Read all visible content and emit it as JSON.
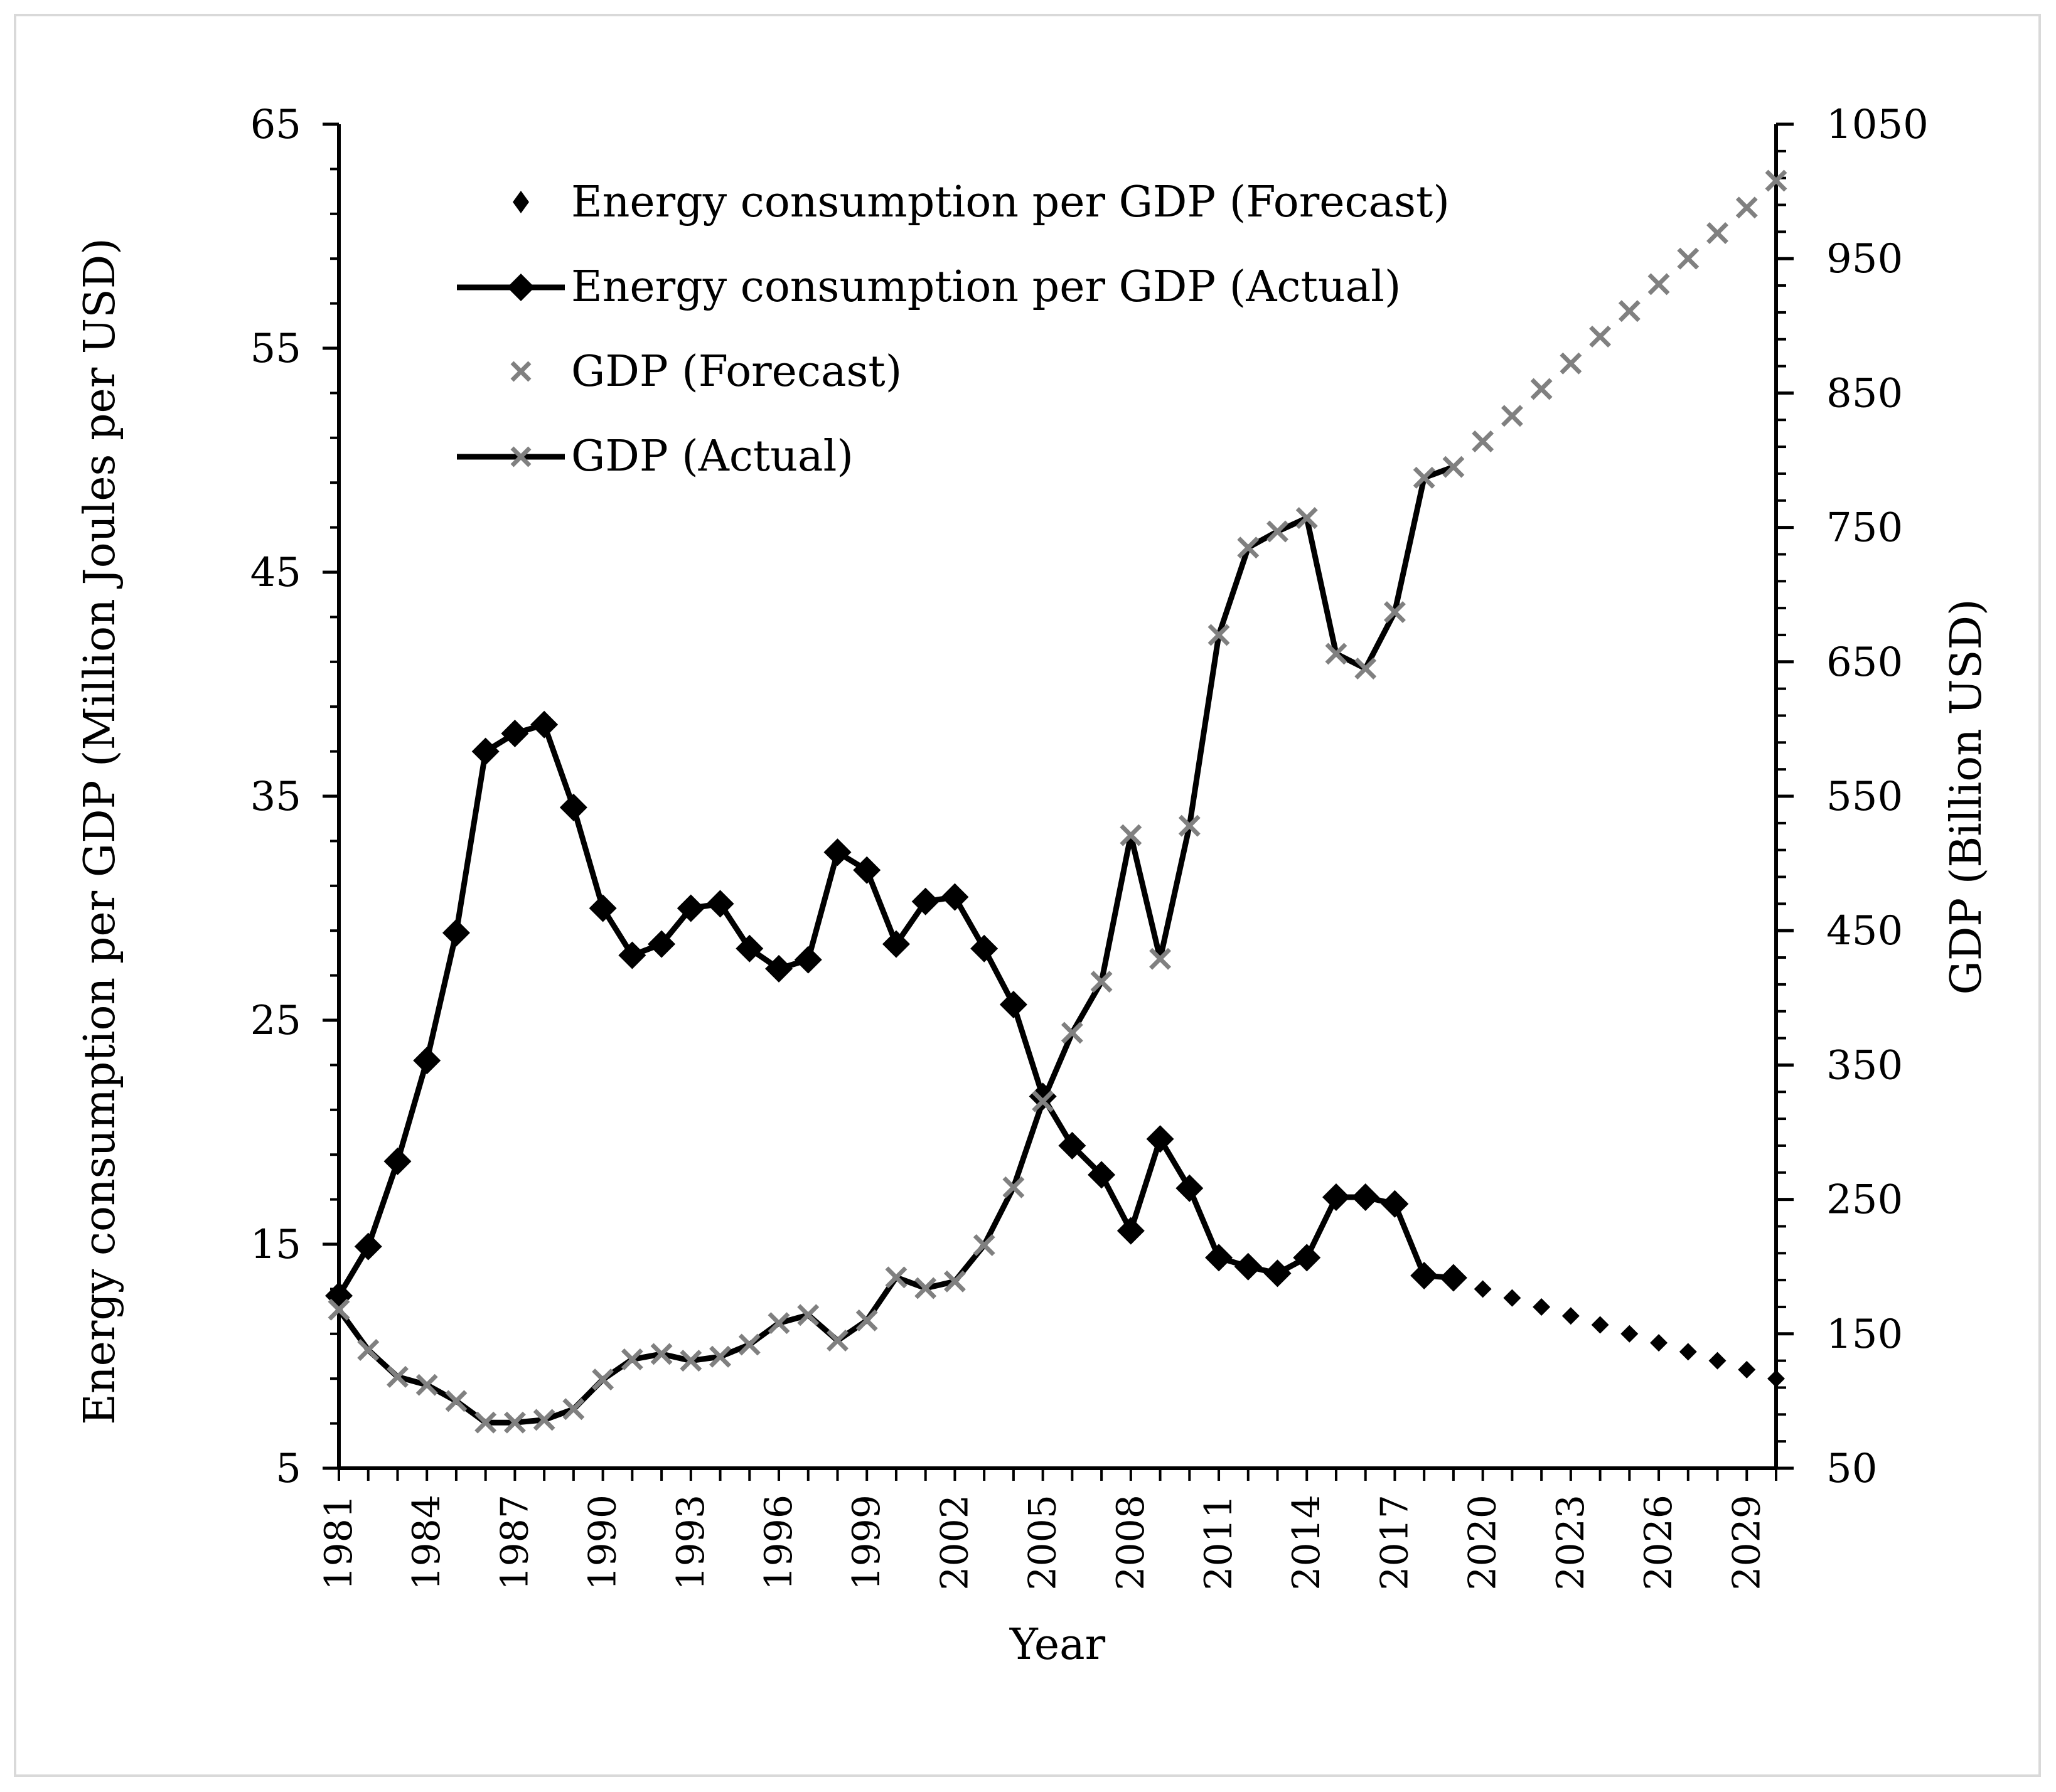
{
  "chart_data": {
    "type": "line",
    "title": "",
    "xlabel": "Year",
    "ylabel_left": "Energy consumption per GDP (Million Joules per USD)",
    "ylabel_right": "GDP (Billion USD)",
    "xlim": [
      1981,
      2030
    ],
    "ylim_left": [
      5,
      65
    ],
    "ylim_right": [
      50,
      1050
    ],
    "x_tick_labels": [
      "1981",
      "1984",
      "1987",
      "1990",
      "1993",
      "1996",
      "1999",
      "2002",
      "2005",
      "2008",
      "2011",
      "2014",
      "2017",
      "2020",
      "2023",
      "2026",
      "2029"
    ],
    "y_left_tick_labels": [
      "5",
      "15",
      "25",
      "35",
      "45",
      "55",
      "65"
    ],
    "y_right_tick_labels": [
      "50",
      "150",
      "250",
      "350",
      "450",
      "550",
      "650",
      "750",
      "850",
      "950",
      "1050"
    ],
    "legend_position": "top-left",
    "series": [
      {
        "name": "Energy consumption per GDP (Forecast)",
        "axis": "left",
        "marker": "diamond-small",
        "line": false,
        "color": "#000000",
        "x": [
          2020,
          2021,
          2022,
          2023,
          2024,
          2025,
          2026,
          2027,
          2028,
          2029,
          2030
        ],
        "y": [
          13.0,
          12.6,
          12.2,
          11.8,
          11.4,
          11.0,
          10.6,
          10.2,
          9.8,
          9.4,
          9.0
        ]
      },
      {
        "name": "Energy consumption per GDP (Actual)",
        "axis": "left",
        "marker": "diamond",
        "line": true,
        "color": "#000000",
        "x": [
          1981,
          1982,
          1983,
          1984,
          1985,
          1986,
          1987,
          1988,
          1989,
          1990,
          1991,
          1992,
          1993,
          1994,
          1995,
          1996,
          1997,
          1998,
          1999,
          2000,
          2001,
          2002,
          2003,
          2004,
          2005,
          2006,
          2007,
          2008,
          2009,
          2010,
          2011,
          2012,
          2013,
          2014,
          2015,
          2016,
          2017,
          2018,
          2019
        ],
        "y": [
          12.7,
          14.9,
          18.7,
          23.2,
          28.9,
          37.0,
          37.8,
          38.2,
          34.5,
          30.0,
          27.9,
          28.4,
          30.0,
          30.2,
          28.2,
          27.3,
          27.7,
          32.5,
          31.7,
          28.4,
          30.3,
          30.5,
          28.2,
          25.7,
          21.6,
          19.4,
          18.1,
          15.6,
          19.7,
          17.5,
          14.4,
          14.0,
          13.7,
          14.4,
          17.1,
          17.1,
          16.8,
          13.6,
          13.5
        ]
      },
      {
        "name": "GDP (Forecast)",
        "axis": "right",
        "marker": "x",
        "line": false,
        "color": "#808080",
        "x": [
          2020,
          2021,
          2022,
          2023,
          2024,
          2025,
          2026,
          2027,
          2028,
          2029,
          2030
        ],
        "y": [
          814,
          833,
          853,
          872,
          892,
          911,
          931,
          950,
          969,
          988,
          1008
        ]
      },
      {
        "name": "GDP (Actual)",
        "axis": "right",
        "marker": "x",
        "line": true,
        "color": "#808080",
        "line_color": "#000000",
        "x": [
          1981,
          1982,
          1983,
          1984,
          1985,
          1986,
          1987,
          1988,
          1989,
          1990,
          1991,
          1992,
          1993,
          1994,
          1995,
          1996,
          1997,
          1998,
          1999,
          2000,
          2001,
          2002,
          2003,
          2004,
          2005,
          2006,
          2007,
          2008,
          2009,
          2010,
          2011,
          2012,
          2013,
          2014,
          2015,
          2016,
          2017,
          2018,
          2019
        ],
        "y": [
          168,
          138,
          118,
          112,
          100,
          84,
          84,
          86,
          94,
          116,
          131,
          135,
          130,
          133,
          142,
          158,
          164,
          145,
          160,
          192,
          184,
          189,
          216,
          259,
          323,
          374,
          412,
          521,
          429,
          528,
          670,
          735,
          747,
          757,
          656,
          645,
          687,
          787,
          795
        ]
      }
    ]
  }
}
